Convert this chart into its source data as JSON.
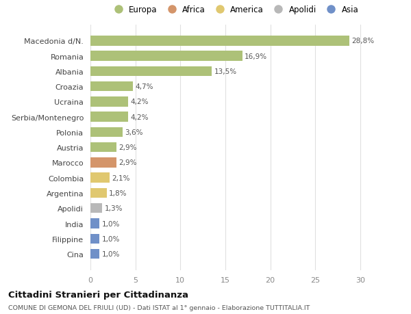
{
  "categories": [
    "Macedonia d/N.",
    "Romania",
    "Albania",
    "Croazia",
    "Ucraina",
    "Serbia/Montenegro",
    "Polonia",
    "Austria",
    "Marocco",
    "Colombia",
    "Argentina",
    "Apolidi",
    "India",
    "Filippine",
    "Cina"
  ],
  "values": [
    28.8,
    16.9,
    13.5,
    4.7,
    4.2,
    4.2,
    3.6,
    2.9,
    2.9,
    2.1,
    1.8,
    1.3,
    1.0,
    1.0,
    1.0
  ],
  "labels": [
    "28,8%",
    "16,9%",
    "13,5%",
    "4,7%",
    "4,2%",
    "4,2%",
    "3,6%",
    "2,9%",
    "2,9%",
    "2,1%",
    "1,8%",
    "1,3%",
    "1,0%",
    "1,0%",
    "1,0%"
  ],
  "colors": [
    "#adc178",
    "#adc178",
    "#adc178",
    "#adc178",
    "#adc178",
    "#adc178",
    "#adc178",
    "#adc178",
    "#d4956a",
    "#e0c870",
    "#e0c870",
    "#b8b8b8",
    "#7090c8",
    "#7090c8",
    "#7090c8"
  ],
  "legend_labels": [
    "Europa",
    "Africa",
    "America",
    "Apolidi",
    "Asia"
  ],
  "legend_colors": [
    "#adc178",
    "#d4956a",
    "#e0c870",
    "#b8b8b8",
    "#7090c8"
  ],
  "title": "Cittadini Stranieri per Cittadinanza",
  "subtitle": "COMUNE DI GEMONA DEL FRIULI (UD) - Dati ISTAT al 1° gennaio - Elaborazione TUTTITALIA.IT",
  "xlim": [
    0,
    32
  ],
  "xticks": [
    0,
    5,
    10,
    15,
    20,
    25,
    30
  ],
  "background_color": "#ffffff",
  "grid_color": "#e0e0e0"
}
